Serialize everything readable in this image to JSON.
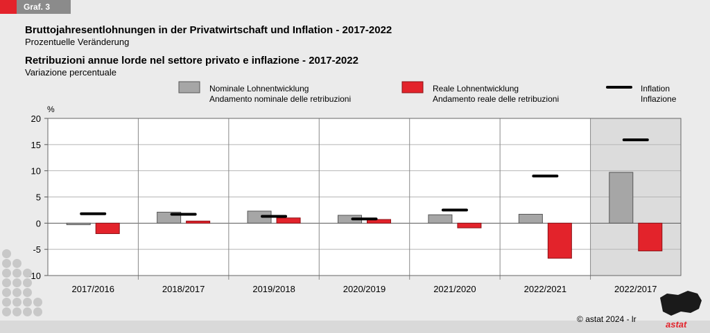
{
  "header": {
    "tag": "Graf. 3"
  },
  "titles": {
    "title_de": "Bruttojahresentlohnungen in der Privatwirtschaft und Inflation - 2017-2022",
    "subtitle_de": "Prozentuelle Veränderung",
    "title_it": "Retribuzioni annue lorde nel settore privato e inflazione - 2017-2022",
    "subtitle_it": "Variazione percentuale"
  },
  "legend": {
    "nominal_de": "Nominale Lohnentwicklung",
    "nominal_it": "Andamento nominale delle retribuzioni",
    "real_de": "Reale Lohnentwicklung",
    "real_it": "Andamento reale delle retribuzioni",
    "inflation_de": "Inflation",
    "inflation_it": "Inflazione"
  },
  "footer": {
    "copyright": "astat 2024 - lr",
    "logo": "astat"
  },
  "colors": {
    "nominal": "#a6a6a6",
    "real": "#e3232b",
    "inflation": "#000000",
    "highlight": "#dcdcdc"
  },
  "chart_data": {
    "type": "bar",
    "ylabel": "%",
    "ylim": [
      -10,
      20
    ],
    "yticks": [
      20,
      15,
      10,
      5,
      0,
      -5,
      -10
    ],
    "categories": [
      "2017/2016",
      "2018/2017",
      "2019/2018",
      "2020/2019",
      "2021/2020",
      "2022/2021",
      "2022/2017"
    ],
    "highlighted_category": "2022/2017",
    "series": [
      {
        "name": "Nominale Lohnentwicklung / Andamento nominale delle retribuzioni",
        "type": "bar",
        "values": [
          -0.3,
          2.1,
          2.3,
          1.5,
          1.6,
          1.7,
          9.7
        ]
      },
      {
        "name": "Reale Lohnentwicklung / Andamento reale delle retribuzioni",
        "type": "bar",
        "values": [
          -2.0,
          0.4,
          1.0,
          0.7,
          -0.9,
          -6.7,
          -5.3
        ]
      },
      {
        "name": "Inflation / Inflazione",
        "type": "marker",
        "values": [
          1.8,
          1.7,
          1.3,
          0.8,
          2.5,
          9.0,
          15.9
        ]
      }
    ],
    "grid": true,
    "legend_position": "top"
  }
}
